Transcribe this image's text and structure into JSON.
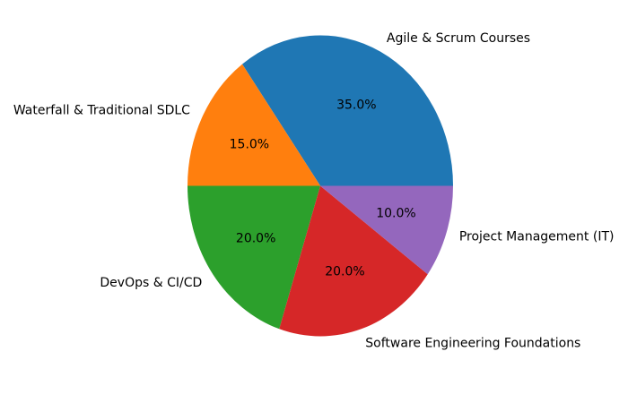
{
  "chart_data": {
    "type": "pie",
    "categories": [
      "Agile & Scrum Courses",
      "Waterfall & Traditional SDLC",
      "DevOps & CI/CD",
      "Software Engineering Foundations",
      "Project Management (IT)"
    ],
    "values": [
      35.0,
      15.0,
      20.0,
      20.0,
      10.0
    ],
    "percent_labels": [
      "35.0%",
      "15.0%",
      "20.0%",
      "20.0%",
      "10.0%"
    ],
    "colors": [
      "#1f77b4",
      "#ff7f0e",
      "#2ca02c",
      "#d62728",
      "#9467bd"
    ],
    "start_angle_deg": 0,
    "direction": "counterclockwise",
    "title": ""
  }
}
